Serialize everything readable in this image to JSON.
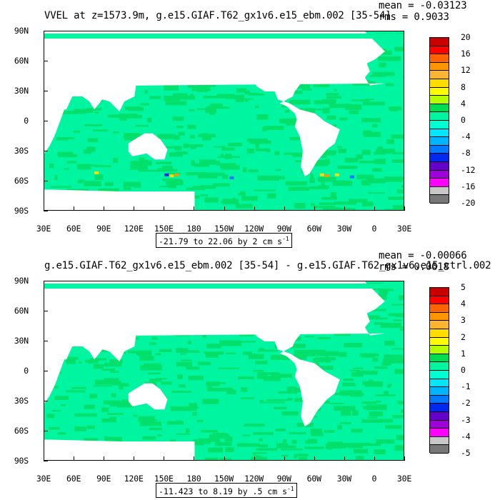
{
  "panels": [
    {
      "title": "VVEL at z=1573.9m, g.e15.GIAF.T62_gx1v6.e15_ebm.002 [35-54]",
      "stats": {
        "mean_line": "mean = -0.03123",
        "rms_line": "rms = 0.9033"
      },
      "range_text": "-21.79 to 22.06 by 2 cm s",
      "range_unit_exp": "-1",
      "colorbar": {
        "labels": [
          "20",
          "16",
          "12",
          "8",
          "4",
          "0",
          "-4",
          "-8",
          "-12",
          "-16",
          "-20"
        ],
        "colors": [
          "#c80000",
          "#ff0000",
          "#ff6400",
          "#ff9600",
          "#ffb432",
          "#ffdc00",
          "#ffff00",
          "#b4ff00",
          "#00dc50",
          "#00f5a0",
          "#00ffd2",
          "#00e6ff",
          "#00b4ff",
          "#0078ff",
          "#0028f0",
          "#6400c8",
          "#a000dc",
          "#ff00ff",
          "#c8c8c8",
          "#787878"
        ]
      }
    },
    {
      "title": "g.e15.GIAF.T62_gx1v6.e15_ebm.002 [35-54] - g.e15.GIAF.T62_gx1v6.e15_ctrl.002",
      "stats": {
        "mean_line": "mean = -0.00066",
        "rms_line": "rms = 0.0618"
      },
      "range_text": "-11.423 to 8.19 by .5 cm s",
      "range_unit_exp": "-1",
      "colorbar": {
        "labels": [
          "5",
          "4",
          "3",
          "2",
          "1",
          "0",
          "-1",
          "-2",
          "-3",
          "-4",
          "-5"
        ],
        "colors": [
          "#c80000",
          "#ff0000",
          "#ff6400",
          "#ff9600",
          "#ffb432",
          "#ffdc00",
          "#ffff00",
          "#b4ff00",
          "#00dc50",
          "#00f5a0",
          "#00ffd2",
          "#00e6ff",
          "#00b4ff",
          "#0078ff",
          "#0028f0",
          "#6400c8",
          "#a000dc",
          "#ff00ff",
          "#c8c8c8",
          "#787878"
        ]
      }
    }
  ],
  "axes": {
    "lat_labels": [
      "90N",
      "60N",
      "30N",
      "0",
      "30S",
      "60S",
      "90S"
    ],
    "lon_labels": [
      "30E",
      "60E",
      "90E",
      "120E",
      "150E",
      "180",
      "150W",
      "120W",
      "90W",
      "60W",
      "30W",
      "0",
      "30E"
    ]
  },
  "colors": {
    "ocean_main": "#00f5a0",
    "ocean_alt": "#00e06a",
    "land": "#ffffff"
  }
}
